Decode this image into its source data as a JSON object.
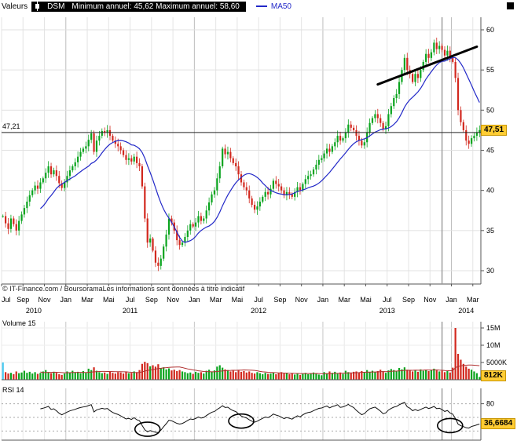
{
  "header": {
    "series_label": "Valeurs",
    "symbol": "DSM",
    "range_label": "Minimum annuel: 45,62 Maximum annuel: 58,60",
    "ma_label": "MA50"
  },
  "footer": {
    "note": "© IT-Finance.com / BoursoramaLes informations sont données à titre indicatif"
  },
  "colors": {
    "up": "#0aa41e",
    "down": "#d2281e",
    "ma50": "#2228c8",
    "highlight_bg": "#ffcc33",
    "highlight_border": "#c89600",
    "volume_ma": "#b03030",
    "first_volume_bar": "#45c8f0",
    "annotation": "#000000"
  },
  "chart_data": [
    {
      "type": "candlestick",
      "name": "price",
      "ylim": [
        30,
        60
      ],
      "y_ticks": [
        60,
        55,
        50,
        45,
        40,
        35,
        30
      ],
      "x_tick_labels": [
        "Jul",
        "Sep",
        "Nov",
        "Jan",
        "Mar",
        "Mai",
        "Jul",
        "Sep",
        "Nov",
        "Jan",
        "Mar",
        "Mai",
        "Jul",
        "Sep",
        "Nov",
        "Jan",
        "Mar",
        "Mai",
        "Jul",
        "Sep",
        "Nov",
        "Jan",
        "Mar"
      ],
      "x_ticks_every": 8,
      "years": [
        {
          "label": "2010",
          "start_index": 0
        },
        {
          "label": "2011",
          "start_index": 24
        },
        {
          "label": "2012",
          "start_index": 72
        },
        {
          "label": "2013",
          "start_index": 120
        },
        {
          "label": "2014",
          "start_index": 168
        }
      ],
      "closes": [
        36.8,
        35.9,
        35.2,
        36.5,
        35.8,
        35.0,
        36.2,
        37.0,
        37.8,
        38.6,
        39.4,
        40.0,
        40.6,
        40.2,
        41.0,
        41.5,
        42.2,
        43.0,
        42.0,
        42.5,
        41.8,
        40.9,
        40.3,
        41.0,
        41.8,
        42.5,
        43.0,
        43.5,
        44.2,
        44.8,
        45.2,
        45.5,
        46.3,
        47.1,
        44.8,
        46.2,
        46.8,
        47.4,
        47.2,
        47.5,
        46.8,
        46.2,
        45.8,
        45.5,
        45.0,
        44.4,
        43.8,
        44.0,
        43.6,
        44.2,
        43.4,
        43.0,
        40.5,
        36.5,
        33.5,
        34.0,
        32.5,
        31.0,
        30.6,
        31.5,
        33.0,
        34.5,
        36.5,
        36.0,
        35.0,
        33.8,
        33.2,
        33.5,
        34.2,
        35.0,
        35.8,
        35.5,
        36.0,
        36.8,
        36.2,
        36.5,
        37.5,
        38.5,
        39.5,
        40.0,
        41.5,
        43.0,
        45.2,
        44.5,
        44.8,
        44.0,
        43.4,
        43.0,
        42.0,
        41.0,
        40.4,
        40.0,
        39.0,
        38.2,
        37.6,
        38.0,
        38.6,
        39.2,
        39.8,
        39.5,
        40.2,
        41.2,
        40.8,
        40.5,
        40.0,
        39.4,
        39.8,
        39.5,
        39.2,
        39.8,
        40.4,
        40.0,
        40.8,
        41.4,
        41.8,
        42.0,
        42.6,
        43.2,
        43.8,
        44.0,
        44.6,
        45.2,
        44.8,
        45.5,
        46.0,
        46.8,
        46.2,
        46.5,
        47.2,
        48.2,
        47.8,
        47.5,
        46.8,
        46.2,
        45.6,
        46.0,
        47.2,
        48.4,
        49.0,
        49.5,
        49.0,
        48.4,
        47.6,
        48.0,
        49.5,
        50.5,
        51.5,
        52.0,
        53.5,
        55.0,
        56.5,
        55.0,
        54.5,
        53.5,
        54.5,
        54.0,
        55.0,
        56.0,
        57.0,
        56.5,
        57.2,
        58.4,
        57.6,
        58.0,
        57.5,
        56.8,
        57.4,
        56.5,
        56.0,
        54.0,
        50.0,
        48.5,
        47.5,
        46.2,
        45.8,
        46.5,
        46.8,
        47.2,
        47.51
      ],
      "ma_window": 15,
      "hline": {
        "value": 47.21,
        "label": "47,21"
      },
      "last_price_label": "47,51",
      "trendline": {
        "from_index": 140,
        "from_value": 53.2,
        "to_index": 177,
        "to_value": 57.9
      },
      "vline_index": 164
    },
    {
      "type": "bar",
      "name": "volume",
      "label": "Volume 15",
      "y_ticks": [
        {
          "label": "15M",
          "value": 15
        },
        {
          "label": "10M",
          "value": 10
        },
        {
          "label": "5000K",
          "value": 5
        }
      ],
      "values_millions": [
        5.0,
        2.2,
        1.8,
        2.0,
        1.6,
        2.4,
        1.9,
        2.1,
        2.6,
        2.0,
        2.3,
        1.8,
        2.2,
        1.7,
        2.0,
        2.4,
        2.8,
        2.2,
        1.9,
        2.3,
        2.0,
        1.6,
        1.4,
        1.8,
        2.4,
        2.1,
        2.6,
        2.2,
        2.3,
        1.9,
        2.5,
        2.0,
        3.2,
        2.8,
        3.6,
        2.6,
        2.2,
        1.9,
        2.1,
        1.7,
        2.4,
        2.0,
        1.8,
        2.2,
        2.1,
        1.8,
        2.3,
        1.9,
        2.0,
        2.4,
        2.2,
        2.8,
        4.6,
        5.2,
        4.8,
        3.9,
        4.2,
        3.8,
        4.5,
        3.4,
        3.6,
        3.0,
        3.3,
        2.7,
        2.9,
        2.5,
        2.8,
        2.4,
        2.2,
        1.9,
        2.1,
        1.7,
        2.3,
        2.0,
        2.2,
        1.8,
        2.6,
        2.9,
        2.4,
        2.7,
        3.8,
        4.2,
        3.5,
        3.0,
        2.8,
        2.4,
        2.6,
        2.2,
        2.7,
        2.3,
        2.5,
        2.1,
        2.4,
        2.0,
        1.8,
        2.2,
        1.9,
        1.6,
        2.0,
        1.7,
        1.8,
        2.1,
        1.6,
        1.9,
        2.2,
        1.8,
        2.0,
        1.6,
        1.9,
        1.5,
        1.8,
        1.4,
        1.7,
        2.0,
        1.6,
        1.9,
        2.1,
        1.7,
        1.5,
        1.3,
        2.2,
        1.9,
        2.4,
        2.0,
        2.3,
        1.8,
        2.1,
        1.7,
        2.6,
        2.2,
        1.9,
        2.3,
        2.4,
        2.0,
        2.5,
        2.1,
        2.8,
        2.3,
        2.6,
        2.2,
        2.5,
        2.9,
        2.4,
        2.0,
        2.7,
        3.1,
        2.8,
        2.4,
        3.4,
        3.0,
        3.6,
        2.9,
        2.8,
        2.4,
        2.7,
        2.3,
        3.0,
        2.6,
        2.9,
        2.5,
        2.8,
        3.2,
        2.7,
        2.4,
        2.6,
        2.2,
        2.5,
        2.1,
        3.5,
        15.0,
        7.5,
        5.8,
        4.6,
        3.8,
        3.2,
        2.9,
        2.4,
        1.9,
        0.812
      ],
      "ma_window": 15,
      "last_label": "812K"
    },
    {
      "type": "line",
      "name": "rsi",
      "label": "RSI 14",
      "period": 14,
      "ylim": [
        0,
        100
      ],
      "gridlines": [
        80,
        50,
        20
      ],
      "y_tick_labels": [
        {
          "label": "80",
          "value": 80
        }
      ],
      "last_label": "36,6684",
      "circle_annotations": [
        {
          "index": 54,
          "value": 24
        },
        {
          "index": 89,
          "value": 42
        },
        {
          "index": 167,
          "value": 32
        }
      ]
    }
  ]
}
